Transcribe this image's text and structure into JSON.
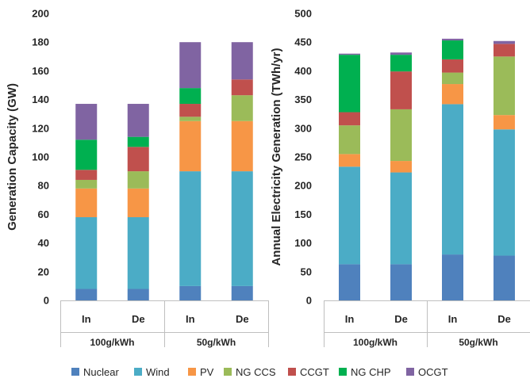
{
  "colors": {
    "Nuclear": "#4f81bd",
    "Wind": "#4bacc6",
    "PV": "#f79646",
    "NG CCS": "#9bbb59",
    "CCGT": "#c0504d",
    "NG CHP": "#00b050",
    "OCGT": "#8064a2"
  },
  "legend_position": "bottom",
  "chart_data": [
    {
      "type": "bar",
      "stacked": true,
      "title": "",
      "ylabel": "Generation Capacity (GW)",
      "ylim": [
        0,
        200
      ],
      "yticks": [
        0,
        20,
        40,
        60,
        80,
        100,
        120,
        140,
        160,
        180,
        200
      ],
      "categories": [
        "In",
        "De",
        "In",
        "De"
      ],
      "groups": [
        {
          "label": "100g/kWh",
          "span": 2
        },
        {
          "label": "50g/kWh",
          "span": 2
        }
      ],
      "grid": false,
      "series": [
        {
          "name": "Nuclear",
          "values": [
            8,
            8,
            10,
            10
          ]
        },
        {
          "name": "Wind",
          "values": [
            50,
            50,
            80,
            80
          ]
        },
        {
          "name": "PV",
          "values": [
            20,
            20,
            35,
            35
          ]
        },
        {
          "name": "NG CCS",
          "values": [
            6,
            12,
            3,
            18
          ]
        },
        {
          "name": "CCGT",
          "values": [
            7,
            17,
            9,
            11
          ]
        },
        {
          "name": "NG CHP",
          "values": [
            21,
            7,
            11,
            0
          ]
        },
        {
          "name": "OCGT",
          "values": [
            25,
            23,
            32,
            26
          ]
        }
      ]
    },
    {
      "type": "bar",
      "stacked": true,
      "title": "",
      "ylabel": "Annual Electricity Generation (TWh/yr)",
      "ylim": [
        0,
        500
      ],
      "yticks": [
        0,
        50,
        100,
        150,
        200,
        250,
        300,
        350,
        400,
        450,
        500
      ],
      "categories": [
        "In",
        "De",
        "In",
        "De"
      ],
      "groups": [
        {
          "label": "100g/kWh",
          "span": 2
        },
        {
          "label": "50g/kWh",
          "span": 2
        }
      ],
      "grid": false,
      "series": [
        {
          "name": "Nuclear",
          "values": [
            63,
            63,
            80,
            78
          ]
        },
        {
          "name": "Wind",
          "values": [
            170,
            160,
            262,
            220
          ]
        },
        {
          "name": "PV",
          "values": [
            22,
            20,
            35,
            25
          ]
        },
        {
          "name": "NG CCS",
          "values": [
            50,
            90,
            20,
            102
          ]
        },
        {
          "name": "CCGT",
          "values": [
            23,
            66,
            23,
            22
          ]
        },
        {
          "name": "NG CHP",
          "values": [
            100,
            29,
            33,
            0
          ]
        },
        {
          "name": "OCGT",
          "values": [
            2,
            4,
            3,
            5
          ]
        }
      ]
    }
  ],
  "legend": [
    "Nuclear",
    "Wind",
    "PV",
    "NG CCS",
    "CCGT",
    "NG CHP",
    "OCGT"
  ]
}
